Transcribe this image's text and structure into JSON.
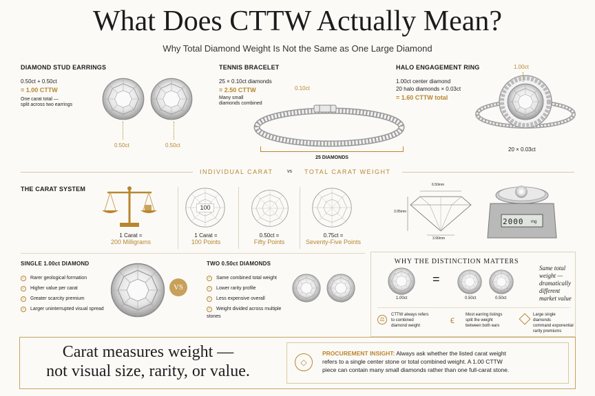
{
  "header": {
    "title": "What Does CTTW Actually Mean?",
    "subtitle": "Why Total Diamond Weight Is Not the Same as One Large Diamond"
  },
  "studs": {
    "heading": "DIAMOND STUD EARRINGS",
    "formula": "0.50ct + 0.50ct",
    "result": "= 1.00 CTTW",
    "note1": "One carat total —",
    "note2": "split across two earrings",
    "label_left": "0.50ct",
    "label_right": "0.50ct"
  },
  "bracelet": {
    "heading": "TENNIS BRACELET",
    "formula": "25 × 0.10ct diamonds",
    "result": "= 2.50 CTTW",
    "note1": "Many small",
    "note2": "diamonds combined",
    "stone_label": "0.10ct",
    "count_label": "25 DIAMONDS"
  },
  "halo": {
    "heading": "HALO ENGAGEMENT RING",
    "line1": "1.00ct center diamond",
    "line2": "20 halo diamonds × 0.03ct",
    "result": "= 1.60 CTTW total",
    "top_label": "1.00ct",
    "bottom_label": "20 × 0.03ct"
  },
  "divider": {
    "left": "INDIVIDUAL CARAT",
    "vs": "vs",
    "right": "TOTAL CARAT WEIGHT"
  },
  "carat_system": {
    "heading": "THE CARAT SYSTEM",
    "items": [
      {
        "line1": "1 Carat =",
        "line2": "200 Milligrams"
      },
      {
        "line1": "1 Carat =",
        "line2": "100 Points"
      },
      {
        "line1": "0.50ct =",
        "line2": "Fifty Points"
      },
      {
        "line1": "0.75ct =",
        "line2": "Seventy-Five Points"
      }
    ],
    "points_badge": "100",
    "dims": {
      "top": "6.50mm",
      "side": "3.95mm",
      "bottom": "3.90mm"
    },
    "scale_readout": "2000",
    "scale_unit": "mg"
  },
  "single": {
    "heading": "SINGLE 1.00ct DIAMOND",
    "items": [
      "Rarer geological formation",
      "Higher value per carat",
      "Greater scarcity premium",
      "Larger uninterrupted visual spread"
    ]
  },
  "vs_badge": "VS",
  "two": {
    "heading": "TWO 0.50ct DIAMONDS",
    "items": [
      "Same combined total weight",
      "Lower rarity profile",
      "Less expensive overall",
      "Weight divided across multiple stones"
    ]
  },
  "distinction": {
    "heading": "WHY THE DISTINCTION MATTERS",
    "left_label": "1.00ct",
    "equals": "=",
    "right_label_a": "0.50ct",
    "right_label_b": "0.50ct",
    "quote_lines": [
      "Same total",
      "weight —",
      "dramatically",
      "different",
      "market value"
    ],
    "notes": [
      {
        "l1": "CTTW always refers",
        "l2": "to combined",
        "l3": "diamond weight"
      },
      {
        "l1": "Most earring listings",
        "l2": "split the weight",
        "l3": "between both ears"
      },
      {
        "l1": "Large single diamonds",
        "l2": "command exponential",
        "l3": "rarity premiums"
      }
    ]
  },
  "footer": {
    "tagline1": "Carat measures weight —",
    "tagline2": "not visual size, rarity, or value.",
    "insight_label": "PROCUREMENT INSIGHT:",
    "insight_l1": "Always ask whether the listed carat weight",
    "insight_l2": "refers to a single center stone or total combined weight. A 1.00 CTTW",
    "insight_l3": "piece can contain many small diamonds rather than one full-carat stone."
  },
  "colors": {
    "gold": "#b8862e",
    "ink": "#1c1c1c",
    "rule": "#d8c8a4"
  }
}
